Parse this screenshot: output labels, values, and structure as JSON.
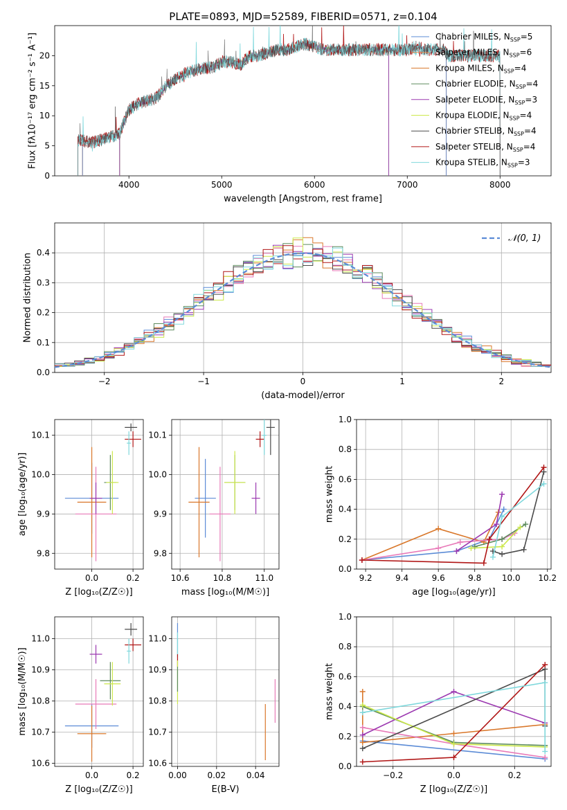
{
  "figure": {
    "title": "PLATE=0893, MJD=52589, FIBERID=0571, z=0.104"
  },
  "colors": {
    "Chabrier MILES": "#5b8bd6",
    "Salpeter MILES": "#e1874f",
    "Kroupa MILES": "#d9772a",
    "Chabrier ELODIE": "#5c8a5c",
    "Salpeter ELODIE": "#9b38b0",
    "Kroupa ELODIE": "#cce84a",
    "Chabrier STELIB": "#4a4a4a",
    "Salpeter STELIB": "#b01515",
    "Kroupa STELIB": "#7fd8dc",
    "pink": "#e879b8",
    "normal": "#5b8bd6"
  },
  "chart_data": [
    {
      "type": "line",
      "title": "PLATE=0893, MJD=52589, FIBERID=0571, z=0.104",
      "xlabel": "wavelength [Angstrom, rest frame]",
      "ylabel": "Flux [fλ10⁻¹⁷ erg cm⁻² s⁻¹ A⁻¹]",
      "xlim": [
        3200,
        8550
      ],
      "ylim": [
        0,
        25
      ],
      "xticks": [
        4000,
        5000,
        6000,
        7000,
        8000
      ],
      "yticks": [
        0,
        5,
        10,
        15,
        20
      ],
      "grid": false,
      "legend_position": "right",
      "legend": [
        {
          "label": "Chabrier MILES, N",
          "sub": "SSP",
          "suffix": "=5"
        },
        {
          "label": "Salpeter MILES, N",
          "sub": "SSP",
          "suffix": "=6"
        },
        {
          "label": "Kroupa MILES, N",
          "sub": "SSP",
          "suffix": "=4"
        },
        {
          "label": "Chabrier ELODIE, N",
          "sub": "SSP",
          "suffix": "=4"
        },
        {
          "label": "Salpeter ELODIE, N",
          "sub": "SSP",
          "suffix": "=3"
        },
        {
          "label": "Kroupa ELODIE, N",
          "sub": "SSP",
          "suffix": "=4"
        },
        {
          "label": "Chabrier STELIB, N",
          "sub": "SSP",
          "suffix": "=4"
        },
        {
          "label": "Salpeter STELIB, N",
          "sub": "SSP",
          "suffix": "=4"
        },
        {
          "label": "Kroupa STELIB, N",
          "sub": "SSP",
          "suffix": "=3"
        }
      ],
      "spectrum_shape": [
        [
          3450,
          6
        ],
        [
          3600,
          5.5
        ],
        [
          3700,
          6
        ],
        [
          3800,
          6.5
        ],
        [
          3900,
          7
        ],
        [
          4000,
          11
        ],
        [
          4100,
          12
        ],
        [
          4200,
          12.5
        ],
        [
          4300,
          13
        ],
        [
          4400,
          15
        ],
        [
          4500,
          16
        ],
        [
          4600,
          17
        ],
        [
          4700,
          17.5
        ],
        [
          4800,
          18
        ],
        [
          4900,
          18
        ],
        [
          5000,
          19
        ],
        [
          5100,
          19
        ],
        [
          5200,
          18.5
        ],
        [
          5300,
          20
        ],
        [
          5400,
          20
        ],
        [
          5500,
          20.5
        ],
        [
          5600,
          21
        ],
        [
          5700,
          21
        ],
        [
          5800,
          21.5
        ],
        [
          5900,
          22
        ],
        [
          6000,
          21.5
        ],
        [
          6100,
          21
        ],
        [
          6200,
          21
        ],
        [
          6300,
          21
        ],
        [
          6400,
          21
        ],
        [
          6500,
          21
        ],
        [
          6600,
          21
        ],
        [
          6700,
          21
        ],
        [
          6800,
          21
        ],
        [
          6900,
          21
        ],
        [
          7000,
          21
        ],
        [
          7100,
          21.5
        ],
        [
          7200,
          21
        ],
        [
          7300,
          21
        ],
        [
          7400,
          21
        ],
        [
          7430,
          20
        ]
      ],
      "series_ranges": {
        "Chabrier MILES": [
          3500,
          7420
        ],
        "Salpeter MILES": [
          3500,
          7420
        ],
        "Kroupa MILES": [
          3500,
          7420
        ],
        "Chabrier ELODIE": [
          3900,
          6800
        ],
        "Salpeter ELODIE": [
          3900,
          6800
        ],
        "Kroupa ELODIE": [
          3900,
          6800
        ],
        "Chabrier STELIB": [
          3450,
          8000
        ],
        "Salpeter STELIB": [
          3450,
          8000
        ],
        "Kroupa STELIB": [
          3450,
          8000
        ]
      }
    },
    {
      "type": "histogram",
      "xlabel": "(data-model)/error",
      "ylabel": "Normed distribution",
      "xlim": [
        -2.5,
        2.5
      ],
      "ylim": [
        0,
        0.5
      ],
      "xticks": [
        -2,
        -1,
        0,
        1,
        2
      ],
      "yticks": [
        0.0,
        0.1,
        0.2,
        0.3,
        0.4
      ],
      "grid": true,
      "legend_position": "top-right",
      "legend": "𝒩(0, 1)",
      "bin_width": 0.1
    },
    {
      "type": "scatter",
      "xlabel": "Z [log₁₀(Z/Z☉)]",
      "ylabel": "age  [log₁₀(age/yr)]",
      "xlim": [
        -0.18,
        0.25
      ],
      "ylim": [
        9.76,
        10.14
      ],
      "xticks": [
        0.0,
        0.2
      ],
      "yticks": [
        9.8,
        9.9,
        10.0,
        10.1
      ],
      "grid": true,
      "points": [
        {
          "series": "Chabrier MILES",
          "x": 0.0,
          "y": 9.94,
          "xerr": 0.13,
          "yerr": 0.09
        },
        {
          "series": "Kroupa MILES",
          "x": 0.0,
          "y": 9.93,
          "xerr": 0.07,
          "yerr": 0.14
        },
        {
          "series": "pink",
          "x": 0.02,
          "y": 9.9,
          "xerr": 0.1,
          "yerr": 0.12
        },
        {
          "series": "Salpeter ELODIE",
          "x": 0.02,
          "y": 9.94,
          "xerr": 0.03,
          "yerr": 0.04
        },
        {
          "series": "Chabrier ELODIE",
          "x": 0.09,
          "y": 9.98,
          "xerr": 0.03,
          "yerr": 0.07
        },
        {
          "series": "Kroupa ELODIE",
          "x": 0.1,
          "y": 9.98,
          "xerr": 0.03,
          "yerr": 0.08
        },
        {
          "series": "Chabrier STELIB",
          "x": 0.19,
          "y": 10.12,
          "xerr": 0.03,
          "yerr": 0.01
        },
        {
          "series": "Salpeter STELIB",
          "x": 0.2,
          "y": 10.09,
          "xerr": 0.04,
          "yerr": 0.02
        },
        {
          "series": "Kroupa STELIB",
          "x": 0.18,
          "y": 10.08,
          "xerr": 0.01,
          "yerr": 0.03
        }
      ]
    },
    {
      "type": "scatter",
      "xlabel": "mass [log₁₀(M/M☉)]",
      "xlim": [
        10.56,
        11.07
      ],
      "ylim": [
        9.76,
        10.14
      ],
      "xticks": [
        10.6,
        10.8,
        11.0
      ],
      "yticks": [
        9.8,
        9.9,
        10.0,
        10.1
      ],
      "grid": true,
      "points": [
        {
          "series": "Chabrier MILES",
          "x": 10.72,
          "y": 9.94,
          "xerr": 0.05,
          "yerr": 0.1
        },
        {
          "series": "Kroupa MILES",
          "x": 10.69,
          "y": 9.93,
          "xerr": 0.05,
          "yerr": 0.14
        },
        {
          "series": "pink",
          "x": 10.79,
          "y": 9.9,
          "xerr": 0.05,
          "yerr": 0.12
        },
        {
          "series": "Salpeter ELODIE",
          "x": 10.96,
          "y": 9.94,
          "xerr": 0.02,
          "yerr": 0.04
        },
        {
          "series": "Chabrier ELODIE",
          "x": 10.86,
          "y": 9.98,
          "xerr": 0.05,
          "yerr": 0.07
        },
        {
          "series": "Kroupa ELODIE",
          "x": 10.86,
          "y": 9.98,
          "xerr": 0.05,
          "yerr": 0.08
        },
        {
          "series": "Chabrier STELIB",
          "x": 11.03,
          "y": 10.12,
          "xerr": 0.02,
          "yerr": 0.07
        },
        {
          "series": "Salpeter STELIB",
          "x": 10.98,
          "y": 10.09,
          "xerr": 0.02,
          "yerr": 0.02
        },
        {
          "series": "Kroupa STELIB",
          "x": 11.0,
          "y": 10.1,
          "xerr": 0.01,
          "yerr": 0.05
        }
      ]
    },
    {
      "type": "line",
      "xlabel": "age  [log₁₀(age/yr)]",
      "ylabel": "mass weight",
      "xlim": [
        9.15,
        10.22
      ],
      "ylim": [
        0,
        1
      ],
      "xticks": [
        9.2,
        9.4,
        9.6,
        9.8,
        10.0,
        10.2
      ],
      "yticks": [
        0.0,
        0.2,
        0.4,
        0.6,
        0.8,
        1.0
      ],
      "grid": true,
      "series": [
        {
          "name": "Chabrier MILES",
          "x": [
            9.18,
            9.7,
            9.88,
            9.96
          ],
          "y": [
            0.06,
            0.12,
            0.2,
            0.4
          ]
        },
        {
          "name": "Kroupa MILES",
          "x": [
            9.18,
            9.6,
            9.85,
            9.93
          ],
          "y": [
            0.06,
            0.27,
            0.18,
            0.38
          ]
        },
        {
          "name": "pink",
          "x": [
            9.18,
            9.6,
            9.72,
            9.95,
            10.02
          ],
          "y": [
            0.06,
            0.14,
            0.18,
            0.2,
            0.24
          ]
        },
        {
          "name": "Salpeter ELODIE",
          "x": [
            9.7,
            9.92,
            9.95
          ],
          "y": [
            0.12,
            0.3,
            0.5
          ]
        },
        {
          "name": "Chabrier ELODIE",
          "x": [
            9.8,
            9.95,
            10.08
          ],
          "y": [
            0.15,
            0.2,
            0.3
          ]
        },
        {
          "name": "Kroupa ELODIE",
          "x": [
            9.78,
            9.95,
            10.05
          ],
          "y": [
            0.14,
            0.15,
            0.28
          ]
        },
        {
          "name": "Chabrier STELIB",
          "x": [
            9.9,
            9.95,
            10.07,
            10.18
          ],
          "y": [
            0.12,
            0.1,
            0.13,
            0.65
          ]
        },
        {
          "name": "Salpeter STELIB",
          "x": [
            9.18,
            9.85,
            9.88,
            10.18
          ],
          "y": [
            0.06,
            0.04,
            0.2,
            0.68
          ]
        },
        {
          "name": "Kroupa STELIB",
          "x": [
            9.9,
            9.95,
            10.18
          ],
          "y": [
            0.08,
            0.35,
            0.57
          ]
        }
      ]
    },
    {
      "type": "scatter",
      "xlabel": "Z [log₁₀(Z/Z☉)]",
      "ylabel": "mass [log₁₀(M/M☉)]",
      "xlim": [
        -0.18,
        0.25
      ],
      "ylim": [
        10.59,
        11.07
      ],
      "xticks": [
        0.0,
        0.2
      ],
      "yticks": [
        10.6,
        10.7,
        10.8,
        10.9,
        11.0
      ],
      "grid": true,
      "points": [
        {
          "series": "Chabrier MILES",
          "x": 0.0,
          "y": 10.72,
          "xerr": 0.13,
          "yerr": 0.07
        },
        {
          "series": "Kroupa MILES",
          "x": 0.0,
          "y": 10.695,
          "xerr": 0.07,
          "yerr": 0.09
        },
        {
          "series": "pink",
          "x": 0.02,
          "y": 10.79,
          "xerr": 0.1,
          "yerr": 0.08
        },
        {
          "series": "Salpeter ELODIE",
          "x": 0.02,
          "y": 10.95,
          "xerr": 0.03,
          "yerr": 0.03
        },
        {
          "series": "Chabrier ELODIE",
          "x": 0.09,
          "y": 10.865,
          "xerr": 0.05,
          "yerr": 0.06
        },
        {
          "series": "Kroupa ELODIE",
          "x": 0.1,
          "y": 10.855,
          "xerr": 0.04,
          "yerr": 0.07
        },
        {
          "series": "Chabrier STELIB",
          "x": 0.19,
          "y": 11.03,
          "xerr": 0.03,
          "yerr": 0.02
        },
        {
          "series": "Salpeter STELIB",
          "x": 0.2,
          "y": 10.98,
          "xerr": 0.04,
          "yerr": 0.02
        },
        {
          "series": "Kroupa STELIB",
          "x": 0.18,
          "y": 10.96,
          "xerr": 0.01,
          "yerr": 0.04
        }
      ]
    },
    {
      "type": "scatter",
      "xlabel": "E(B-V)",
      "xlim": [
        -0.003,
        0.052
      ],
      "ylim": [
        10.59,
        11.07
      ],
      "xticks": [
        0.0,
        0.02,
        0.04
      ],
      "yticks": [
        10.6,
        10.7,
        10.8,
        10.9,
        11.0
      ],
      "grid": true,
      "points": [
        {
          "series": "Chabrier MILES",
          "x": 0.0,
          "y": 11.0,
          "xerr": 0,
          "yerr": 0.05
        },
        {
          "series": "Kroupa STELIB",
          "x": 0.0,
          "y": 10.98,
          "xerr": 0,
          "yerr": 0.04
        },
        {
          "series": "Salpeter STELIB",
          "x": 0.0,
          "y": 10.93,
          "xerr": 0,
          "yerr": 0.02
        },
        {
          "series": "Kroupa ELODIE",
          "x": 0.0,
          "y": 10.86,
          "xerr": 0,
          "yerr": 0.07
        },
        {
          "series": "Chabrier ELODIE",
          "x": 0.0,
          "y": 10.87,
          "xerr": 0,
          "yerr": 0.04
        },
        {
          "series": "Kroupa MILES",
          "x": 0.045,
          "y": 10.7,
          "xerr": 0,
          "yerr": 0.09
        },
        {
          "series": "pink",
          "x": 0.05,
          "y": 10.8,
          "xerr": 0,
          "yerr": 0.07
        }
      ]
    },
    {
      "type": "line",
      "xlabel": "Z [log₁₀(Z/Z☉)]",
      "ylabel": "mass weight",
      "xlim": [
        -0.32,
        0.32
      ],
      "ylim": [
        0,
        1
      ],
      "xticks": [
        -0.2,
        0.0,
        0.2
      ],
      "yticks": [
        0.0,
        0.2,
        0.4,
        0.6,
        0.8,
        1.0
      ],
      "grid": true,
      "series": [
        {
          "name": "Chabrier MILES",
          "x": [
            -0.3,
            0.3
          ],
          "y": [
            0.17,
            0.05
          ]
        },
        {
          "name": "Kroupa MILES",
          "x": [
            -0.3,
            -0.3,
            0.0,
            0.3
          ],
          "y": [
            0.5,
            0.16,
            0.22,
            0.28
          ]
        },
        {
          "name": "pink",
          "x": [
            -0.3,
            0.0,
            0.3
          ],
          "y": [
            0.26,
            0.15,
            0.06
          ]
        },
        {
          "name": "Salpeter ELODIE",
          "x": [
            -0.3,
            0.0,
            0.3
          ],
          "y": [
            0.21,
            0.5,
            0.29
          ]
        },
        {
          "name": "Chabrier ELODIE",
          "x": [
            -0.3,
            0.0,
            0.3
          ],
          "y": [
            0.4,
            0.16,
            0.14
          ]
        },
        {
          "name": "Kroupa ELODIE",
          "x": [
            -0.3,
            0.0,
            0.3
          ],
          "y": [
            0.41,
            0.15,
            0.13
          ]
        },
        {
          "name": "Chabrier STELIB",
          "x": [
            -0.3,
            0.3,
            0.3
          ],
          "y": [
            0.12,
            0.65,
            0.27
          ]
        },
        {
          "name": "Salpeter STELIB",
          "x": [
            -0.3,
            0.0,
            0.3
          ],
          "y": [
            0.03,
            0.06,
            0.68
          ]
        },
        {
          "name": "Kroupa STELIB",
          "x": [
            -0.3,
            0.3,
            0.3
          ],
          "y": [
            0.36,
            0.56,
            0.1
          ]
        }
      ]
    }
  ]
}
